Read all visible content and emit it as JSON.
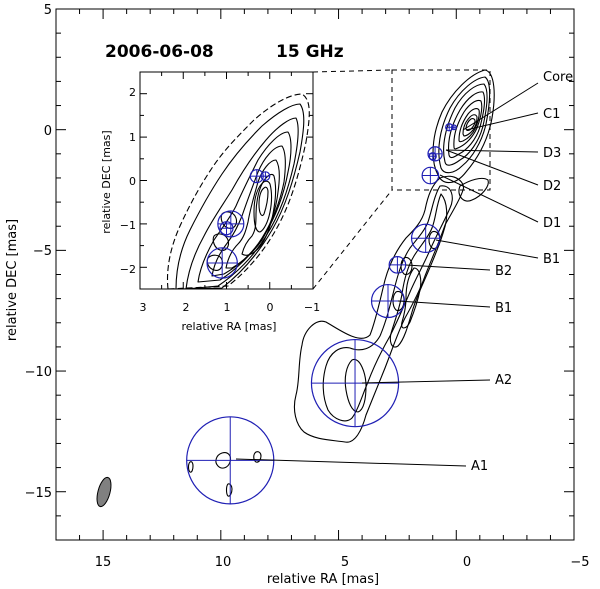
{
  "chart_data": [
    {
      "type": "contour",
      "title": "2006-06-08",
      "subtitle": "15 GHz",
      "xlabel": "relative RA [mas]",
      "ylabel": "relative DEC [mas]",
      "xlim": [
        17,
        -5
      ],
      "ylim": [
        -17,
        5
      ],
      "x_ticks": [
        "15",
        "10",
        "5",
        "0",
        "−5"
      ],
      "y_ticks": [
        "5",
        "0",
        "−5",
        "−10",
        "−15"
      ],
      "components": [
        {
          "label": "Core",
          "ra": 0.1,
          "dec": 0.1,
          "diameter": 0.2
        },
        {
          "label": "C1",
          "ra": 0.3,
          "dec": 0.1,
          "diameter": 0.3
        },
        {
          "label": "D3",
          "ra": 0.9,
          "dec": -1.0,
          "diameter": 0.6
        },
        {
          "label": "D2",
          "ra": 1.0,
          "dec": -1.1,
          "diameter": 0.3
        },
        {
          "label": "D1",
          "ra": 1.1,
          "dec": -1.9,
          "diameter": 0.7
        },
        {
          "label": "B1",
          "ra": 1.3,
          "dec": -4.5,
          "diameter": 1.2
        },
        {
          "label": "B2",
          "ra": 2.5,
          "dec": -5.6,
          "diameter": 0.7
        },
        {
          "label": "B1",
          "ra": 2.9,
          "dec": -7.1,
          "diameter": 1.4
        },
        {
          "label": "A2",
          "ra": 4.3,
          "dec": -10.5,
          "diameter": 3.7
        },
        {
          "label": "A1",
          "ra": 9.6,
          "dec": -13.7,
          "diameter": 3.7
        }
      ],
      "beam": {
        "ra": 15.1,
        "dec": -15.0,
        "major": 1.3,
        "minor": 0.6
      }
    },
    {
      "type": "contour",
      "inset": true,
      "xlabel": "relative RA [mas]",
      "ylabel": "relative DEC [mas]",
      "xlim": [
        3,
        -1
      ],
      "ylim": [
        -2.5,
        2.5
      ],
      "x_ticks": [
        "3",
        "2",
        "1",
        "0",
        "−1"
      ],
      "y_ticks": [
        "2",
        "1",
        "0",
        "−1",
        "−2"
      ]
    }
  ],
  "colors": {
    "contour": "#000000",
    "component": "#1f1fb4",
    "beam": "#808080"
  }
}
